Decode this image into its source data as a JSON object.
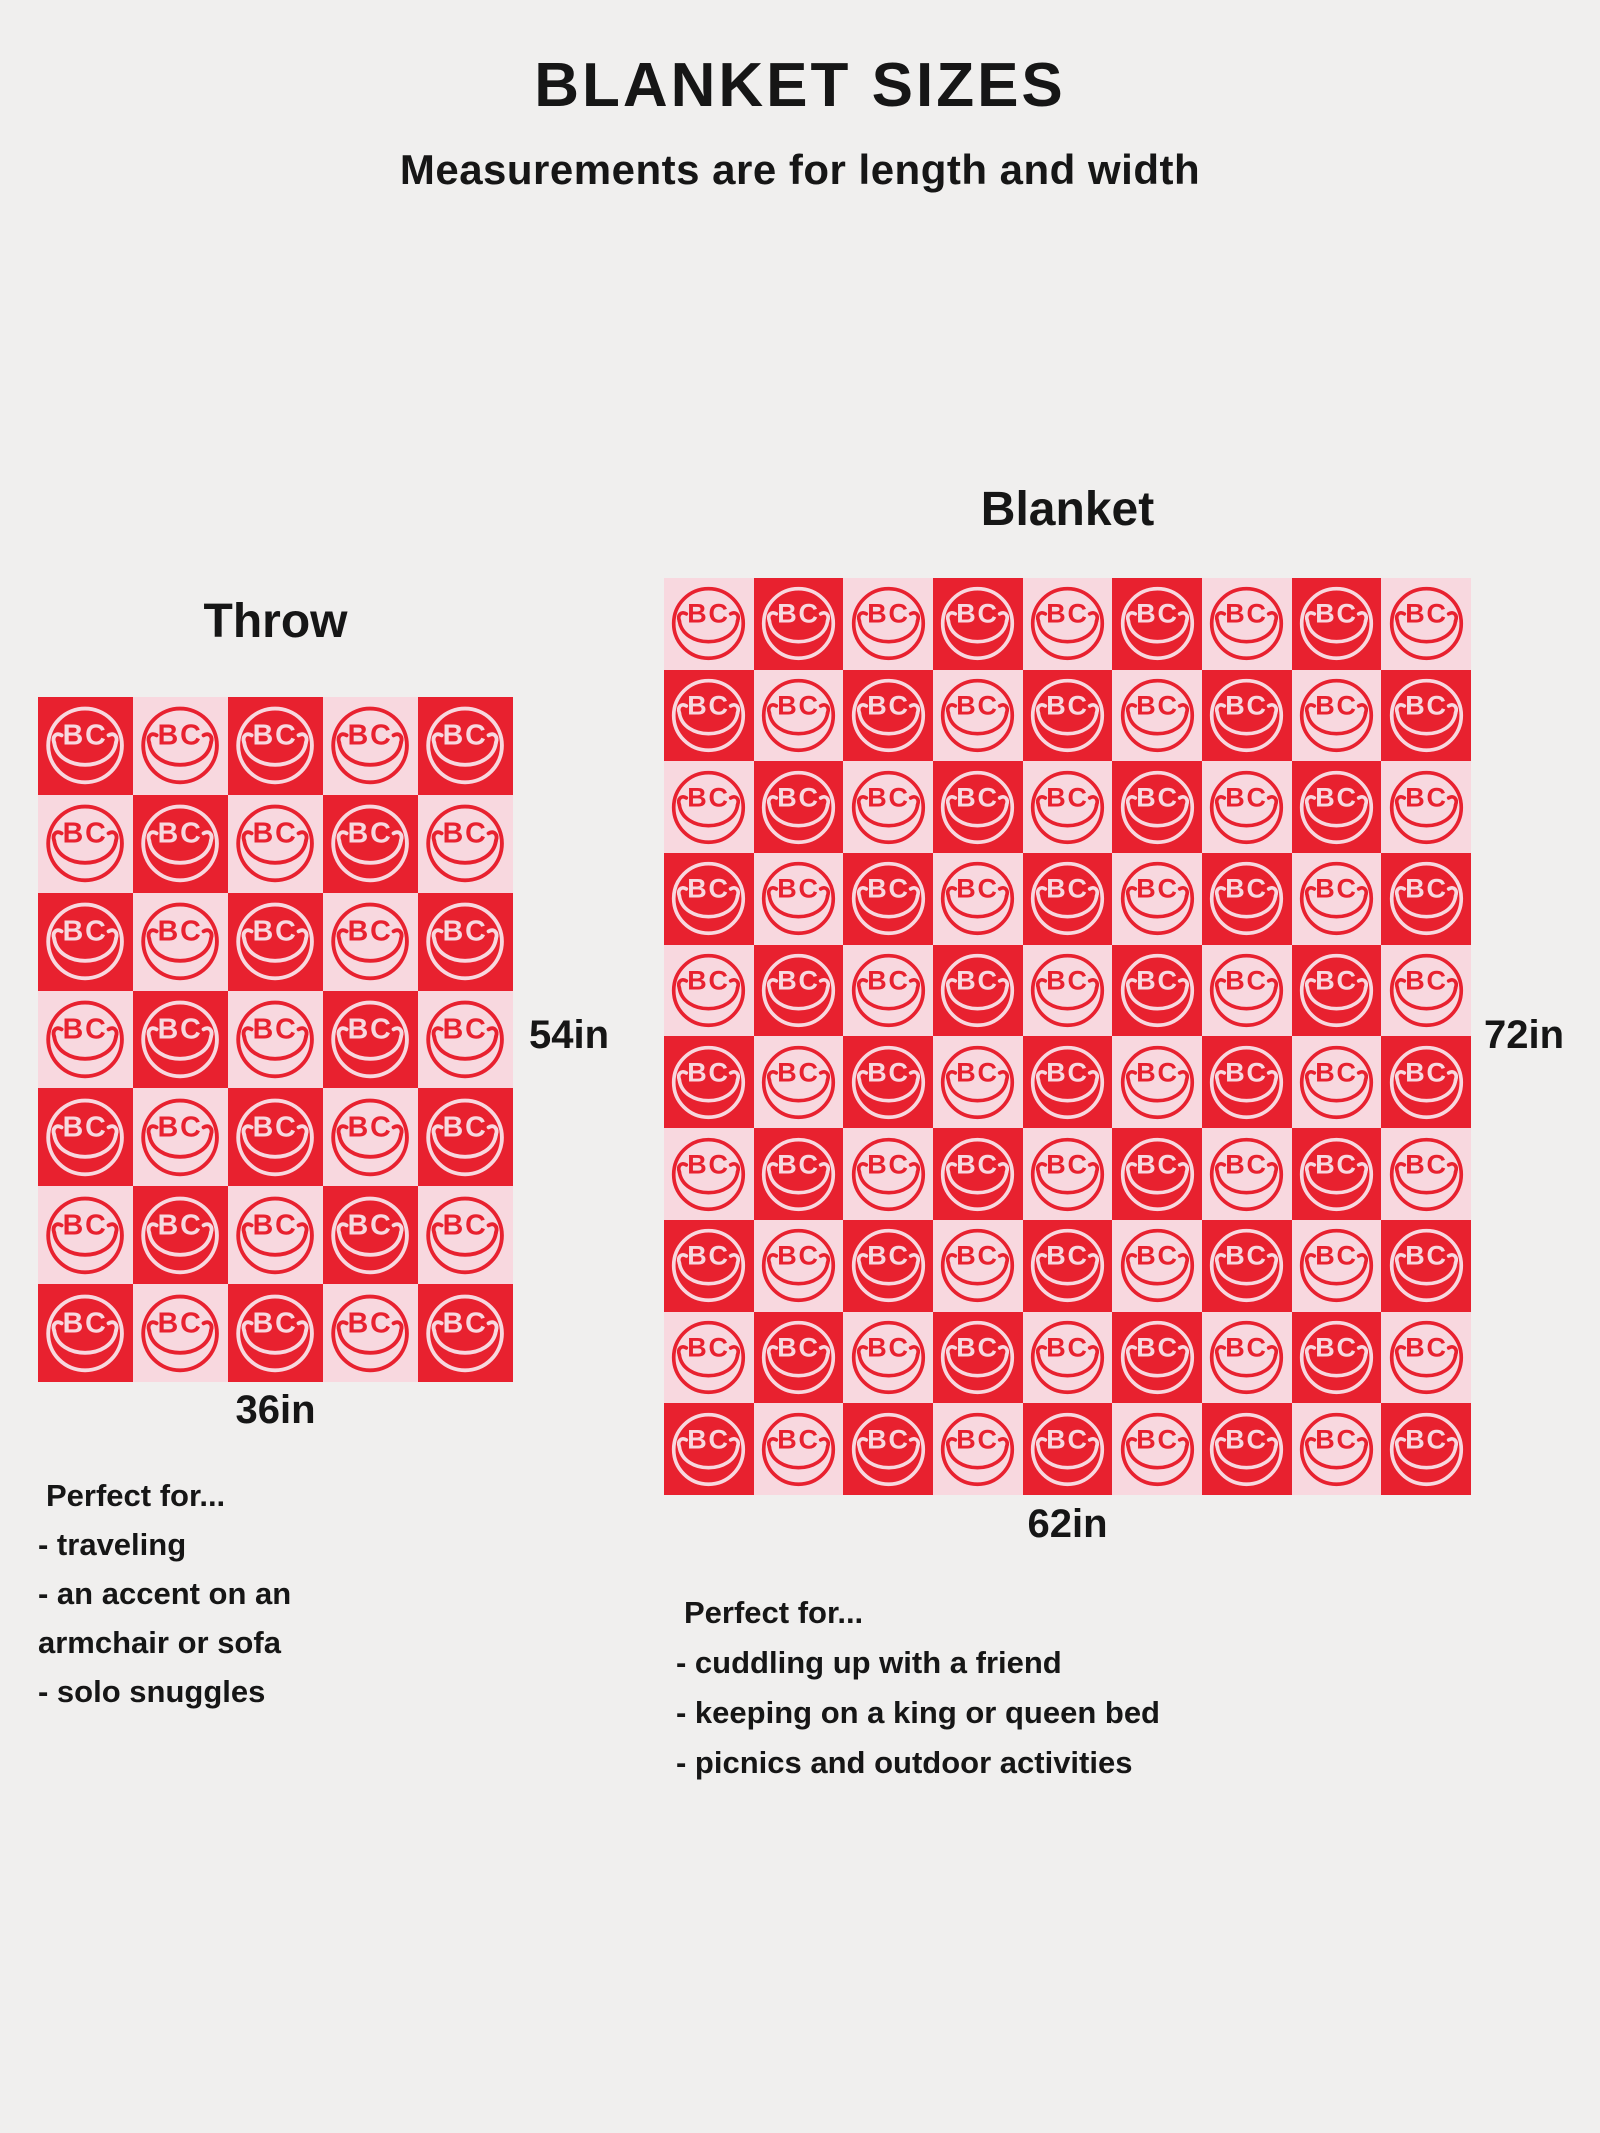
{
  "page": {
    "title": "BLANKET SIZES",
    "subtitle": "Measurements are for length and width",
    "background": "#f0efee",
    "text_color": "#161616"
  },
  "pattern": {
    "logo_text": "BC",
    "red": "#e8212f",
    "pink": "#f8d8df"
  },
  "throw": {
    "label": "Throw",
    "width_label": "36in",
    "height_label": "54in",
    "grid": {
      "columns": 5,
      "rows": 7,
      "first_cell": "red"
    },
    "perfect_for": [
      "Perfect for...",
      "- traveling",
      "- an accent on an",
      "armchair or sofa",
      "- solo snuggles"
    ]
  },
  "blanket": {
    "label": "Blanket",
    "width_label": "62in",
    "height_label": "72in",
    "grid": {
      "columns": 9,
      "rows": 10,
      "first_cell": "pink"
    },
    "perfect_for": [
      "Perfect for...",
      "- cuddling up with a friend",
      "- keeping on a king or queen bed",
      "- picnics and outdoor activities"
    ]
  }
}
